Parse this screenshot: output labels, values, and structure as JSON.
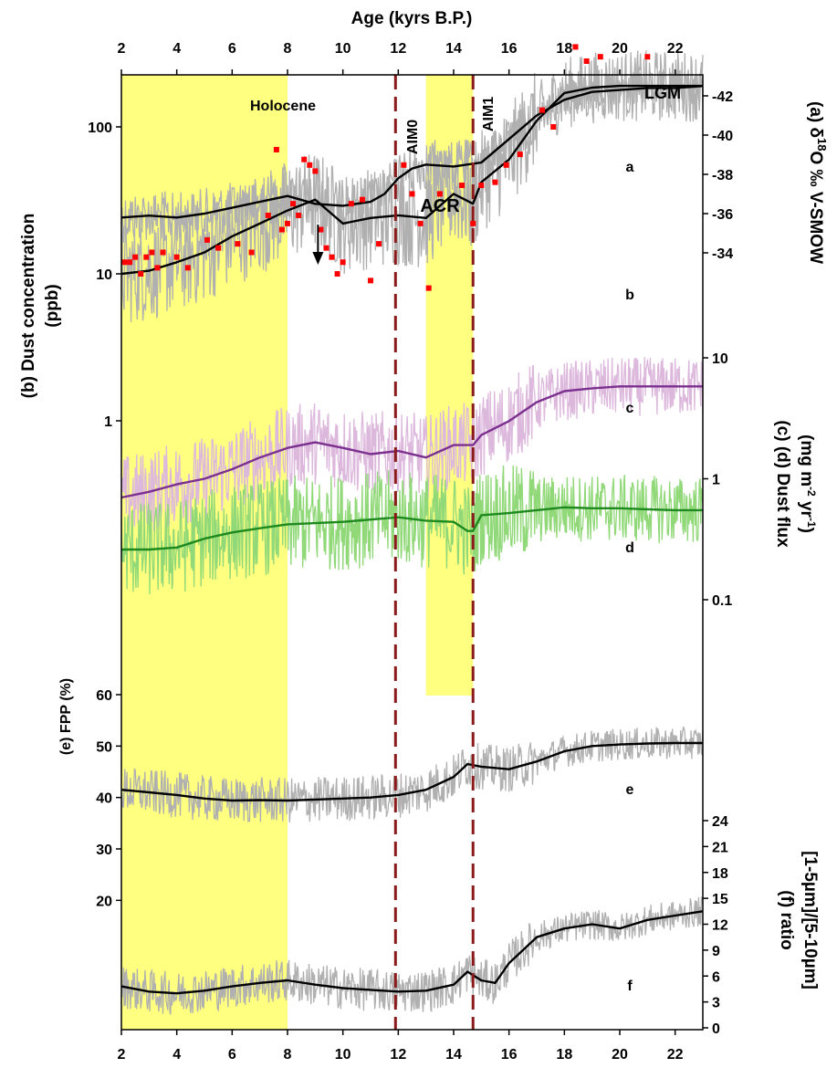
{
  "chart_data": {
    "type": "line",
    "x_axis": {
      "label": "Age (kyrs B.P.)",
      "range": [
        2,
        23
      ],
      "ticks": [
        2,
        4,
        6,
        8,
        10,
        12,
        14,
        16,
        18,
        20,
        22
      ]
    },
    "shaded_periods": [
      {
        "name": "Holocene",
        "range": [
          2,
          8
        ],
        "color": "#ffff80"
      },
      {
        "name": "ACR",
        "range": [
          13,
          14.7
        ],
        "color": "#ffff80"
      }
    ],
    "vertical_markers": [
      {
        "name": "AIM0",
        "x": 11.9,
        "color": "#8b1a1a"
      },
      {
        "name": "AIM1",
        "x": 14.7,
        "color": "#8b1a1a"
      }
    ],
    "annotations": {
      "holocene": "Holocene",
      "acr": "ACR",
      "aim0": "AIM0",
      "aim1": "AIM1",
      "lgm": "LGM"
    },
    "arrow_at_x": 9.1,
    "panels": [
      {
        "id": "a",
        "axis_label": "(a) δ18O ‰ V-SMOW",
        "axis_side": "right",
        "range": [
          -34,
          -43
        ],
        "ticks": [
          -42,
          -40,
          -38,
          -36,
          -34
        ],
        "series": {
          "smooth_x": [
            2,
            3,
            4,
            5,
            6,
            7,
            8,
            9,
            10,
            11,
            11.5,
            12,
            12.5,
            13,
            14,
            15,
            16,
            17,
            18,
            19,
            20,
            21,
            22,
            23
          ],
          "smooth_y": [
            -35.8,
            -35.9,
            -35.8,
            -36.0,
            -36.3,
            -36.6,
            -36.9,
            -36.5,
            -36.4,
            -36.6,
            -37.0,
            -37.8,
            -38.3,
            -38.5,
            -38.4,
            -38.6,
            -39.8,
            -41.0,
            -41.8,
            -42.2,
            -42.3,
            -42.4,
            -42.4,
            -42.5
          ],
          "raw_color": "#b0b0b0",
          "smooth_color": "#000000"
        }
      },
      {
        "id": "b",
        "axis_label": "(b) Dust concentration (ppb)",
        "axis_side": "left",
        "scale": "log",
        "ticks": [
          "1",
          "10",
          "100"
        ],
        "series": {
          "smooth_x": [
            2,
            3,
            4,
            5,
            6,
            7,
            8,
            9,
            10,
            11,
            12,
            13,
            14,
            14.7,
            15,
            16,
            17,
            18,
            19,
            20,
            21,
            22,
            23
          ],
          "smooth_y": [
            10,
            10.5,
            12,
            14,
            18,
            22,
            27,
            32,
            22,
            24,
            25,
            24,
            35,
            30,
            42,
            60,
            110,
            170,
            185,
            190,
            190,
            190,
            190
          ],
          "points_x": [
            2.1,
            2.3,
            2.5,
            2.7,
            2.9,
            3.1,
            3.3,
            3.5,
            4.0,
            4.4,
            5.1,
            5.5,
            6.2,
            6.7,
            7.3,
            7.6,
            7.8,
            8.0,
            8.2,
            8.4,
            8.6,
            8.8,
            9.0,
            9.2,
            9.4,
            9.6,
            9.8,
            10.0,
            10.3,
            10.7,
            11.0,
            11.3,
            12.2,
            12.5,
            12.8,
            13.1,
            13.5,
            14.3,
            14.7,
            15.0,
            15.5,
            15.9,
            16.4,
            17.2,
            17.6,
            18.4,
            18.8,
            19.3,
            21.0
          ],
          "points_y": [
            12,
            12,
            13,
            10,
            13,
            14,
            11,
            14,
            13,
            11,
            17,
            15,
            16,
            14,
            25,
            70,
            20,
            22,
            30,
            25,
            60,
            55,
            50,
            20,
            15,
            13,
            10,
            12,
            30,
            32,
            9,
            16,
            55,
            35,
            22,
            8,
            35,
            40,
            22,
            40,
            42,
            55,
            65,
            130,
            100,
            350,
            280,
            300,
            300
          ],
          "raw_color": "#b0b0b0",
          "smooth_color": "#000000",
          "point_color": "#ff0000"
        }
      },
      {
        "id": "c",
        "axis_label": "(c) (d) Dust flux (mg m-2 yr-1)",
        "axis_side": "right",
        "scale": "log",
        "ticks": [
          "0.1",
          "1",
          "10"
        ],
        "series": {
          "smooth_x": [
            2,
            3,
            4,
            5,
            6,
            7,
            8,
            9,
            10,
            11,
            12,
            13,
            14,
            14.7,
            15,
            16,
            17,
            18,
            19,
            20,
            21,
            22,
            23
          ],
          "smooth_y": [
            0.7,
            0.78,
            0.9,
            1.0,
            1.2,
            1.5,
            1.8,
            2.0,
            1.8,
            1.6,
            1.7,
            1.5,
            1.9,
            1.9,
            2.3,
            3.0,
            4.3,
            5.3,
            5.6,
            5.8,
            5.8,
            5.8,
            5.8
          ],
          "raw_color": "#ddb8dd",
          "smooth_color": "#7b2f8e"
        }
      },
      {
        "id": "d",
        "axis_side": "right",
        "scale": "log",
        "series": {
          "smooth_x": [
            2,
            3,
            4,
            5,
            6,
            7,
            8,
            9,
            10,
            11,
            12,
            13,
            14,
            14.5,
            14.7,
            15,
            16,
            17,
            18,
            19,
            20,
            21,
            22,
            23
          ],
          "smooth_y": [
            0.26,
            0.26,
            0.27,
            0.32,
            0.36,
            0.39,
            0.42,
            0.43,
            0.44,
            0.46,
            0.48,
            0.45,
            0.44,
            0.37,
            0.37,
            0.5,
            0.52,
            0.55,
            0.58,
            0.57,
            0.57,
            0.56,
            0.55,
            0.55
          ],
          "raw_color": "#90d878",
          "smooth_color": "#1e8a1e"
        }
      },
      {
        "id": "e",
        "axis_label": "(e) FPP (%)",
        "axis_side": "left",
        "range": [
          10,
          60
        ],
        "ticks": [
          20,
          30,
          40,
          50,
          60
        ],
        "series": {
          "smooth_x": [
            2,
            3,
            4,
            5,
            6,
            7,
            8,
            9,
            10,
            11,
            12,
            13,
            14,
            14.5,
            15,
            16,
            17,
            18,
            19,
            20,
            21,
            22,
            23
          ],
          "smooth_y": [
            41.5,
            41,
            40.5,
            39.8,
            39.4,
            39.5,
            39.4,
            39.6,
            39.8,
            40,
            40.5,
            41.5,
            44,
            46.5,
            46,
            45.5,
            47,
            49,
            50,
            50.3,
            50.5,
            50.6,
            50.6
          ],
          "raw_color": "#b0b0b0",
          "smooth_color": "#000000"
        }
      },
      {
        "id": "f",
        "axis_label": "(f) ratio [1-5µm]/[5-10µm]",
        "axis_side": "right",
        "range": [
          0,
          24
        ],
        "ticks": [
          0,
          3,
          6,
          9,
          12,
          15,
          18,
          21,
          24
        ],
        "series": {
          "smooth_x": [
            2,
            3,
            4,
            5,
            6,
            7,
            8,
            9,
            10,
            11,
            12,
            13,
            14,
            14.5,
            15,
            15.5,
            16,
            17,
            18,
            19,
            20,
            21,
            22,
            23
          ],
          "smooth_y": [
            4.8,
            4.2,
            4.0,
            4.3,
            4.8,
            5.2,
            5.5,
            5.0,
            4.6,
            4.4,
            4.2,
            4.3,
            5.0,
            6.5,
            5.5,
            5.2,
            7.5,
            10.5,
            11.5,
            12,
            11.5,
            12.5,
            13,
            13.5
          ],
          "raw_color": "#b0b0b0",
          "smooth_color": "#000000"
        }
      }
    ]
  }
}
